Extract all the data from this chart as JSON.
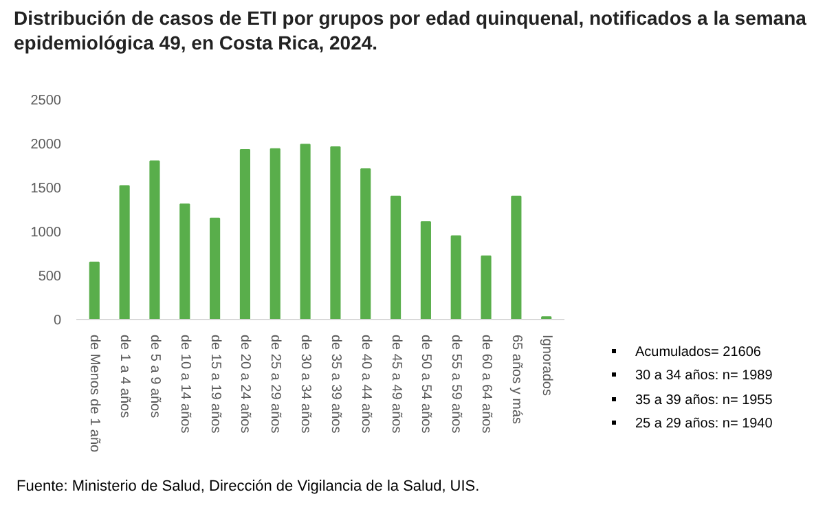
{
  "chart_data": {
    "type": "bar",
    "title": "Distribución de casos de ETI por grupos por edad quinquenal, notificados a la semana epidemiológica 49, en Costa Rica, 2024.",
    "categories": [
      "de Menos de 1 año",
      "de 1 a 4 años",
      "de 5 a 9 años",
      "de 10 a 14 años",
      "de 15 a 19 años",
      "de 20 a 24 años",
      "de 25 a 29 años",
      "de 30 a 34 años",
      "de 35 a 39 años",
      "de 40 a 44 años",
      "de 45 a 49 años",
      "de 50 a 54 años",
      "de 55 a 59 años",
      "de 60 a 64 años",
      "65 años y más",
      "Ignorados"
    ],
    "values": [
      650,
      1520,
      1800,
      1310,
      1150,
      1930,
      1940,
      1990,
      1960,
      1710,
      1400,
      1110,
      950,
      720,
      1400,
      30
    ],
    "color": "#59ae4b",
    "ylim": [
      0,
      2500
    ],
    "yticks": [
      0,
      500,
      1000,
      1500,
      2000,
      2500
    ],
    "grid": false,
    "annotations": [
      "Acumulados= 21606",
      "30 a 34 años: n= 1989",
      "35 a 39 años: n= 1955",
      "25 a 29 años: n= 1940",
      "Fuente: Ministerio de Salud, Dirección de Vigilancia de la Salud, UIS."
    ]
  }
}
